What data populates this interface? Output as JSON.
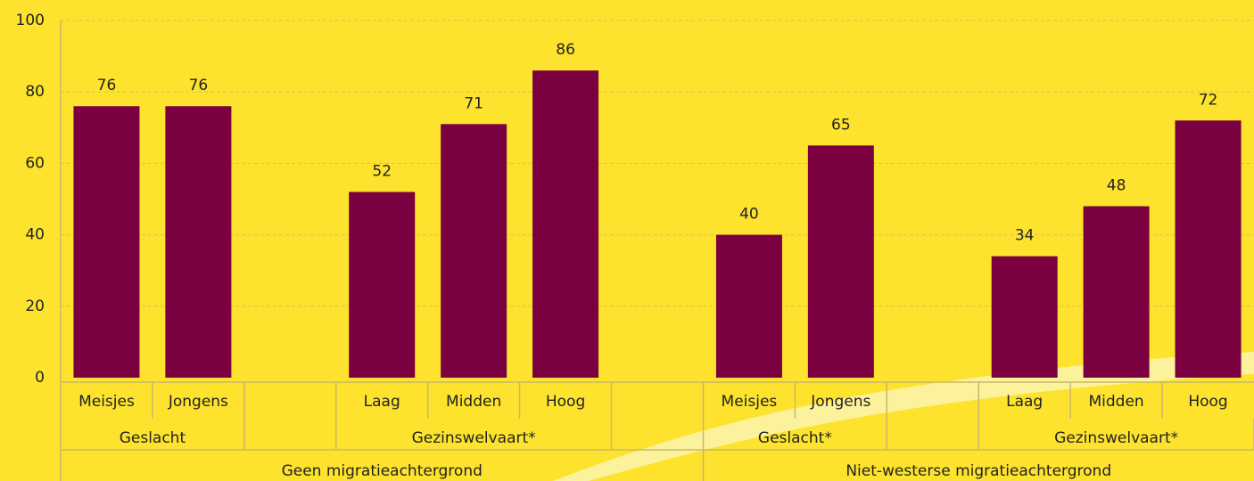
{
  "chart_data": {
    "type": "bar",
    "categories": [
      "Meisjes",
      "Jongens",
      null,
      "Laag",
      "Midden",
      "Hoog",
      null,
      "Meisjes",
      "Jongens",
      null,
      "Laag",
      "Midden",
      "Hoog"
    ],
    "values": [
      76,
      76,
      null,
      52,
      71,
      86,
      null,
      40,
      65,
      null,
      34,
      48,
      72
    ],
    "groups": [
      "Geslacht",
      "Gezinswelvaart*",
      "Geslacht*",
      "Gezinswelvaart*"
    ],
    "supergroups": [
      "Geen migratieachtergrond",
      "Niet-westerse migratieachtergrond"
    ],
    "color": "#7a0040",
    "ylim": [
      0,
      100
    ],
    "yticks": [
      0,
      20,
      40,
      60,
      80,
      100
    ],
    "grid": true
  }
}
